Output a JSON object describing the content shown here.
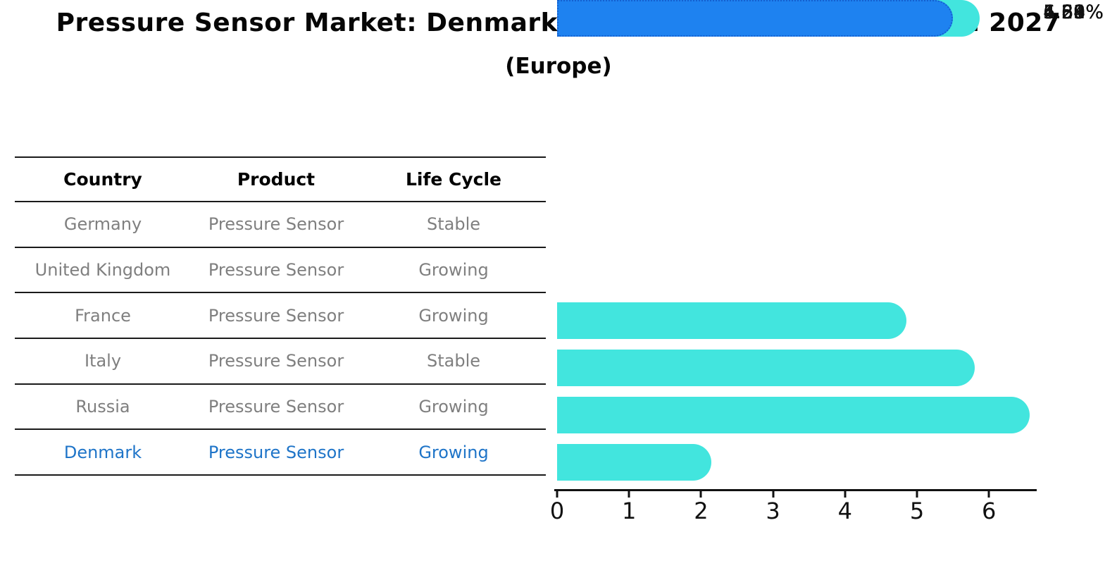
{
  "title": "Pressure Sensor Market: Denmark vs Top 5 Major Economies in 2027",
  "subtitle": "(Europe)",
  "table": {
    "headers": [
      "Country",
      "Product",
      "Life Cycle"
    ],
    "rows": [
      {
        "country": "Germany",
        "product": "Pressure Sensor",
        "life_cycle": "Stable",
        "highlight": false
      },
      {
        "country": "United Kingdom",
        "product": "Pressure Sensor",
        "life_cycle": "Growing",
        "highlight": false
      },
      {
        "country": "France",
        "product": "Pressure Sensor",
        "life_cycle": "Growing",
        "highlight": false
      },
      {
        "country": "Italy",
        "product": "Pressure Sensor",
        "life_cycle": "Stable",
        "highlight": false
      },
      {
        "country": "Russia",
        "product": "Pressure Sensor",
        "life_cycle": "Growing",
        "highlight": false
      },
      {
        "country": "Denmark",
        "product": "Pressure Sensor",
        "life_cycle": "Growing",
        "highlight": true
      }
    ]
  },
  "chart_data": {
    "type": "bar",
    "orientation": "horizontal",
    "title": "Pressure Sensor Market: Denmark vs Top 5 Major Economies in 2027 (Europe)",
    "categories": [
      "Germany",
      "United Kingdom",
      "France",
      "Italy",
      "Russia",
      "Denmark"
    ],
    "values": [
      4.59,
      5.54,
      6.3,
      1.88,
      5.61,
      5.23
    ],
    "value_labels": [
      "4.59%",
      "5.54%",
      "6.30%",
      "1.88%",
      "5.61%",
      "5.23%"
    ],
    "x_ticks": [
      0,
      1,
      2,
      3,
      4,
      5,
      6
    ],
    "xlim": [
      0,
      6.65
    ],
    "grid": false,
    "legend": null,
    "bar_color": "#42E5DE",
    "highlight_index": 5,
    "highlight_bar_color": "#1E82F0",
    "highlight_border_color": "#1460D0"
  },
  "colors": {
    "table_text": "#7f7f7f",
    "table_highlight_text": "#1e74c8",
    "table_line": "#1a1a1a",
    "axis": "#111111",
    "title_text": "#060606"
  }
}
